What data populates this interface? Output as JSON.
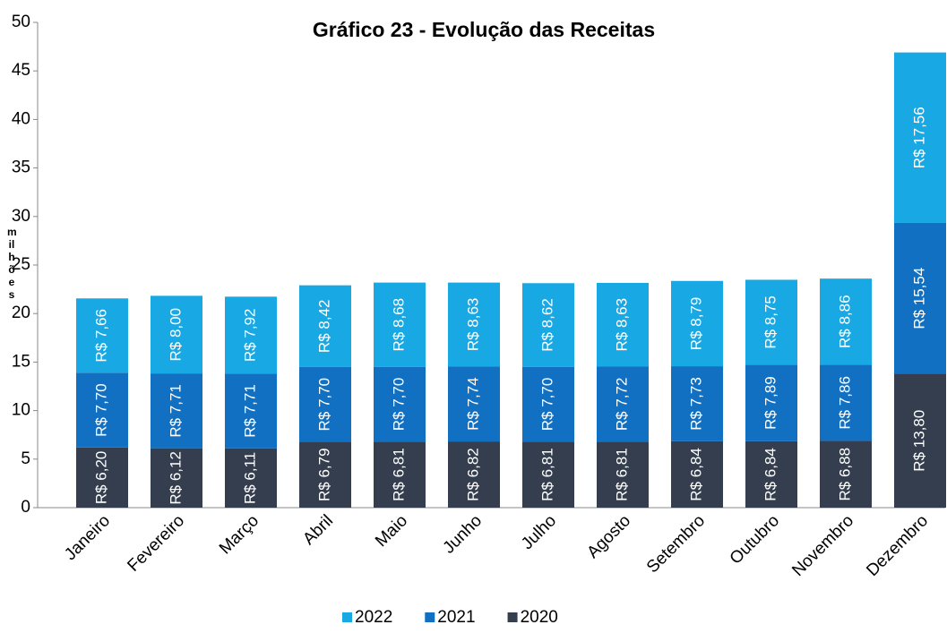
{
  "chart_data": {
    "type": "stacked_bar",
    "title": "Gráfico 23 - Evolução das Receitas",
    "y_label": "milhões",
    "categories": [
      "Janeiro",
      "Fevereiro",
      "Março",
      "Abril",
      "Maio",
      "Junho",
      "Julho",
      "Agosto",
      "Setembro",
      "Outubro",
      "Novembro",
      "Dezembro"
    ],
    "series": [
      {
        "name": "2022",
        "color": "#18a8e4",
        "values": [
          7.66,
          8.0,
          7.92,
          8.42,
          8.68,
          8.63,
          8.62,
          8.63,
          8.79,
          8.75,
          8.86,
          17.56
        ],
        "value_labels": [
          "R$ 7,66",
          "R$ 8,00",
          "R$ 7,92",
          "R$ 8,42",
          "R$ 8,68",
          "R$ 8,63",
          "R$ 8,62",
          "R$ 8,63",
          "R$ 8,79",
          "R$ 8,75",
          "R$ 8,86",
          "R$ 17,56"
        ]
      },
      {
        "name": "2021",
        "color": "#1170c2",
        "values": [
          7.7,
          7.71,
          7.71,
          7.7,
          7.7,
          7.74,
          7.7,
          7.72,
          7.73,
          7.89,
          7.86,
          15.54
        ],
        "value_labels": [
          "R$ 7,70",
          "R$ 7,71",
          "R$ 7,71",
          "R$ 7,70",
          "R$ 7,70",
          "R$ 7,74",
          "R$ 7,70",
          "R$ 7,72",
          "R$ 7,73",
          "R$ 7,89",
          "R$ 7,86",
          "R$ 15,54"
        ]
      },
      {
        "name": "2020",
        "color": "#343e4e",
        "values": [
          6.2,
          6.12,
          6.11,
          6.79,
          6.81,
          6.82,
          6.81,
          6.81,
          6.84,
          6.84,
          6.88,
          13.8
        ],
        "value_labels": [
          "R$ 6,20",
          "R$ 6,12",
          "R$ 6,11",
          "R$ 6,79",
          "R$ 6,81",
          "R$ 6,82",
          "R$ 6,81",
          "R$ 6,81",
          "R$ 6,84",
          "R$ 6,84",
          "R$ 6,88",
          "R$ 13,80"
        ]
      }
    ],
    "ylim": [
      0,
      50
    ],
    "yticks": [
      0,
      5,
      10,
      15,
      20,
      25,
      30,
      35,
      40,
      45,
      50
    ],
    "grid": false,
    "legend": "bottom"
  }
}
